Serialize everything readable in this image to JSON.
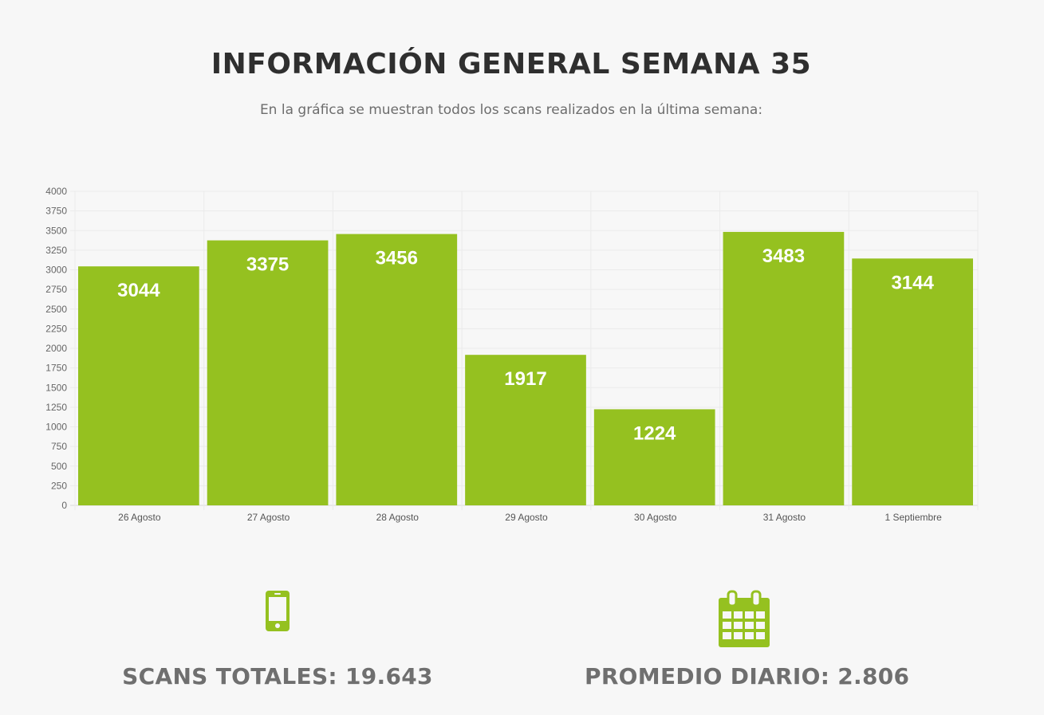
{
  "header": {
    "title": "INFORMACIÓN GENERAL SEMANA 35",
    "subtitle": "En la gráfica se muestran todos los scans realizados en la última semana:"
  },
  "chart_data": {
    "type": "bar",
    "categories": [
      "26 Agosto",
      "27 Agosto",
      "28 Agosto",
      "29 Agosto",
      "30 Agosto",
      "31 Agosto",
      "1 Septiembre"
    ],
    "values": [
      3044,
      3375,
      3456,
      1917,
      1224,
      3483,
      3144
    ],
    "title": "",
    "xlabel": "",
    "ylabel": "",
    "ylim": [
      0,
      4000
    ],
    "y_ticks": [
      0,
      250,
      500,
      750,
      1000,
      1250,
      1500,
      1750,
      2000,
      2250,
      2500,
      2750,
      3000,
      3250,
      3500,
      3750,
      4000
    ],
    "grid": true,
    "legend": "none",
    "data_labels": true,
    "bar_color": "#95c120"
  },
  "stats": {
    "total_label": "SCANS TOTALES: 19.643",
    "total_icon": "smartphone-icon",
    "average_label": "PROMEDIO DIARIO: 2.806",
    "average_icon": "calendar-icon"
  },
  "colors": {
    "accent": "#95c120",
    "title": "#2f2f2f",
    "text_muted": "#6f6f6f",
    "background": "#f7f7f7"
  }
}
